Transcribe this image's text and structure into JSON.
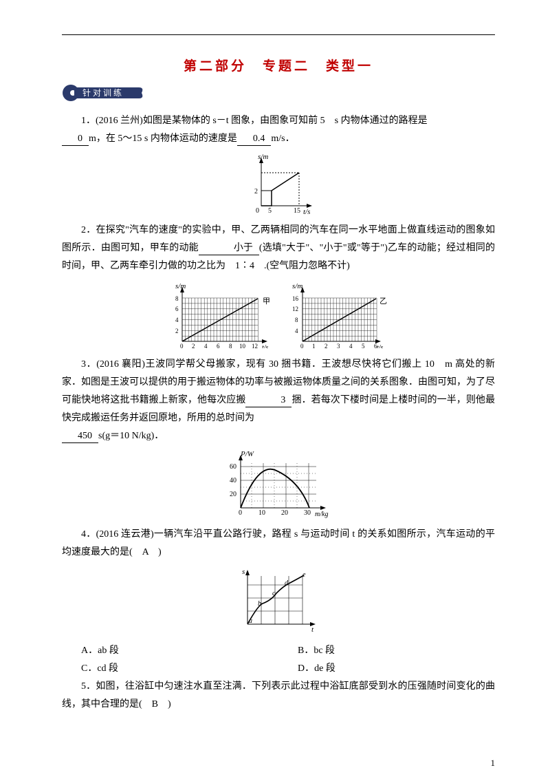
{
  "title": "第二部分　专题二　类型一",
  "badge": "针 对 训 练",
  "q1": {
    "text_a": "1．(2016 兰州)如图是某物体的 s－t 图象，由图象可知前 5　s 内物体通过的路程是",
    "blank1": "　0　",
    "text_b": "m，在 5～15 s 内物体运动的速度是",
    "blank2": "　0.4　",
    "text_c": "m/s．",
    "chart": {
      "ylabel": "s/m",
      "ymax": 2,
      "xlabel": "t/s",
      "xticks": [
        5,
        15
      ],
      "ytick": 2,
      "axis_color": "#000000",
      "line_color": "#000000"
    }
  },
  "q2": {
    "text_a": "2．在探究\"汽车的速度\"的实验中，甲、乙两辆相同的汽车在同一水平地面上做直线运动的图象如图所示．由图可知，甲车的动能",
    "blank1": "　小于　",
    "text_b": "(选填\"大于\"、\"小于\"或\"等于\")乙车的动能；经过相同的时间，甲、乙两车牵引力做的功之比为　1∶4　.(空气阻力忽略不计)",
    "chart": {
      "panels": [
        {
          "label": "甲",
          "xmax": 12,
          "ymax": 8,
          "xticks": [
            0,
            2,
            4,
            6,
            8,
            10,
            12
          ],
          "yticks": [
            2,
            4,
            6,
            8
          ],
          "xlabel": "t/s",
          "ylabel": "s/m"
        },
        {
          "label": "乙",
          "xmax": 6,
          "ymax": 16,
          "xticks": [
            0,
            1,
            2,
            3,
            4,
            5,
            6
          ],
          "yticks": [
            4,
            8,
            12,
            16
          ],
          "xlabel": "t/s",
          "ylabel": "s/m"
        }
      ],
      "grid_color": "#000000",
      "line_color": "#000000"
    }
  },
  "q3": {
    "text_a": "3．(2016 襄阳)王波同学帮父母搬家，现有 30 捆书籍．王波想尽快将它们搬上 10　m 高处的新家．如图是王波可以提供的用于搬运物体的功率与被搬运物体质量之间的关系图象．由图可知，为了尽可能快地将这批书籍搬上新家，他每次应搬",
    "blank1": "　3　",
    "text_b": "捆．若每次下楼时间是上楼时间的一半，则他最快完成搬运任务并返回原地，所用的总时间为",
    "blank2": "　450　",
    "text_c": "s(g＝10 N/kg)．",
    "chart": {
      "ylabel": "P/W",
      "xlabel": "m/kg",
      "xticks": [
        0,
        10,
        20,
        30
      ],
      "yticks": [
        20,
        40,
        60
      ],
      "grid_color": "#000000",
      "curve_color": "#000000",
      "xmax": 37,
      "ymax": 65
    }
  },
  "q4": {
    "text_a": "4．(2016 连云港)一辆汽车沿平直公路行驶，路程 s 与运动时间 t 的关系如图所示，汽车运动的平均速度最大的是(　A　)",
    "optA": "A．ab 段",
    "optB": "B．bc 段",
    "optC": "C．cd 段",
    "optD": "D．de 段",
    "chart": {
      "xlabel": "t",
      "ylabel": "s",
      "nodes": [
        "a",
        "b",
        "c",
        "d",
        "e"
      ],
      "grid_cols": 4,
      "grid_rows": 4
    }
  },
  "q5": {
    "text": "5．如图，往浴缸中匀速注水直至注满．下列表示此过程中浴缸底部受到水的压强随时间变化的曲线，其中合理的是(　B　)"
  },
  "pagenum": "1"
}
